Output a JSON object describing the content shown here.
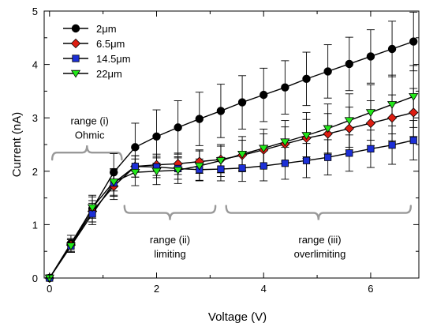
{
  "chart_data": {
    "type": "line",
    "xlabel": "Voltage (V)",
    "ylabel": "Current (nA)",
    "xlim": [
      -0.1,
      6.9
    ],
    "ylim": [
      0,
      5
    ],
    "x_ticks": [
      0,
      2,
      4,
      6
    ],
    "y_ticks": [
      0,
      1,
      2,
      3,
      4,
      5
    ],
    "grid": false,
    "legend_position": "top-left",
    "series": [
      {
        "name": "2μm",
        "color": "#000000",
        "marker": "circle",
        "x": [
          0,
          0.4,
          0.8,
          1.2,
          1.6,
          2.0,
          2.4,
          2.8,
          3.2,
          3.6,
          4.0,
          4.4,
          4.8,
          5.2,
          5.6,
          6.0,
          6.4,
          6.8
        ],
        "y": [
          0,
          0.65,
          1.3,
          1.98,
          2.45,
          2.65,
          2.82,
          2.98,
          3.13,
          3.29,
          3.43,
          3.57,
          3.73,
          3.87,
          4.01,
          4.15,
          4.29,
          4.43
        ],
        "err": [
          0,
          0.15,
          0.25,
          0.35,
          0.45,
          0.5,
          0.5,
          0.5,
          0.5,
          0.5,
          0.5,
          0.5,
          0.5,
          0.5,
          0.5,
          0.5,
          0.52,
          0.55
        ]
      },
      {
        "name": "6.5μm",
        "color": "#dd1e12",
        "marker": "diamond",
        "x": [
          0,
          0.4,
          0.8,
          1.2,
          1.6,
          2.0,
          2.4,
          2.8,
          3.2,
          3.6,
          4.0,
          4.4,
          4.8,
          5.2,
          5.6,
          6.0,
          6.4,
          6.8
        ],
        "y": [
          0,
          0.62,
          1.25,
          1.72,
          2.09,
          2.12,
          2.14,
          2.18,
          2.22,
          2.3,
          2.4,
          2.51,
          2.62,
          2.7,
          2.8,
          2.9,
          3.0,
          3.1
        ],
        "err": [
          0,
          0.12,
          0.2,
          0.25,
          0.2,
          0.2,
          0.2,
          0.22,
          0.25,
          0.28,
          0.3,
          0.32,
          0.35,
          0.38,
          0.4,
          0.42,
          0.43,
          0.45
        ]
      },
      {
        "name": "14.5μm",
        "color": "#1c2fd6",
        "marker": "square",
        "x": [
          0,
          0.4,
          0.8,
          1.2,
          1.6,
          2.0,
          2.4,
          2.8,
          3.2,
          3.6,
          4.0,
          4.4,
          4.8,
          5.2,
          5.6,
          6.0,
          6.4,
          6.8
        ],
        "y": [
          0,
          0.6,
          1.2,
          1.78,
          2.09,
          2.08,
          2.05,
          2.03,
          2.04,
          2.06,
          2.1,
          2.15,
          2.2,
          2.26,
          2.34,
          2.42,
          2.49,
          2.58
        ],
        "err": [
          0,
          0.12,
          0.2,
          0.25,
          0.2,
          0.2,
          0.2,
          0.2,
          0.22,
          0.25,
          0.28,
          0.3,
          0.32,
          0.33,
          0.34,
          0.35,
          0.36,
          0.37
        ]
      },
      {
        "name": "22μm",
        "color": "#22e81a",
        "marker": "triangle-down",
        "x": [
          0,
          0.4,
          0.8,
          1.2,
          1.6,
          2.0,
          2.4,
          2.8,
          3.2,
          3.6,
          4.0,
          4.4,
          4.8,
          5.2,
          5.6,
          6.0,
          6.4,
          6.8
        ],
        "y": [
          0,
          0.6,
          1.32,
          1.8,
          1.98,
          2.0,
          2.02,
          2.1,
          2.2,
          2.32,
          2.43,
          2.55,
          2.67,
          2.8,
          2.95,
          3.1,
          3.25,
          3.4
        ],
        "err": [
          0,
          0.12,
          0.2,
          0.25,
          0.25,
          0.25,
          0.25,
          0.28,
          0.3,
          0.33,
          0.36,
          0.4,
          0.43,
          0.46,
          0.5,
          0.52,
          0.55,
          0.58
        ]
      }
    ],
    "annotations": [
      {
        "lines": [
          "range (i)",
          "Ohmic"
        ],
        "x": 0.75,
        "y": 2.88
      },
      {
        "lines": [
          "range (ii)",
          "limiting"
        ],
        "x": 2.25,
        "y": 0.65
      },
      {
        "lines": [
          "range (iii)",
          "overlimiting"
        ],
        "x": 5.05,
        "y": 0.65
      }
    ],
    "brackets": [
      {
        "x1": 0.05,
        "x2": 1.35,
        "y": 2.35,
        "orientation": "up"
      },
      {
        "x1": 1.4,
        "x2": 3.1,
        "y": 1.22,
        "orientation": "down"
      },
      {
        "x1": 3.3,
        "x2": 6.75,
        "y": 1.22,
        "orientation": "down"
      }
    ]
  }
}
